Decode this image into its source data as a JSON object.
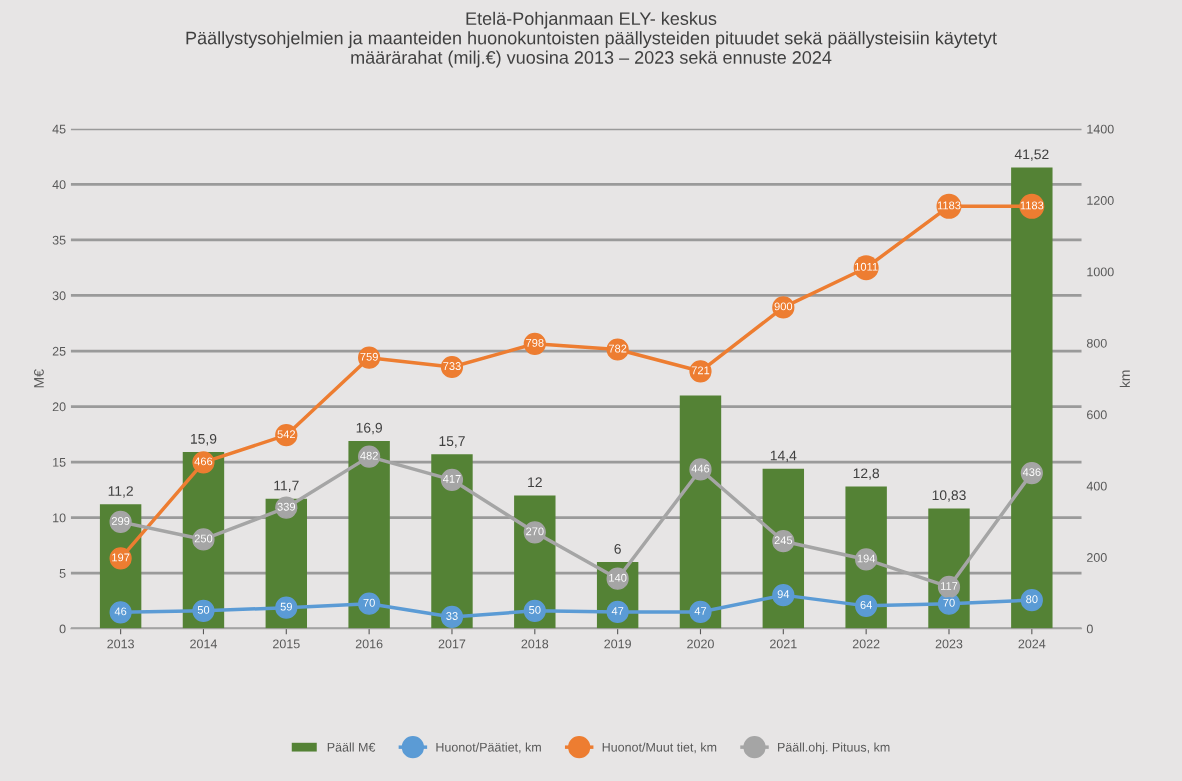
{
  "chart_data": {
    "type": "bar",
    "title": "Etelä-Pohjanmaan ELY- keskus\nPäällystysohjelmien ja maanteiden huonokuntoisten päällysteiden pituudet sekä päällysteisiin käytetyt\nmäärärahat (milj.€) vuosina 2013 – 2023 sekä ennuste 2024",
    "ylabel": "M€",
    "y2label": "km",
    "categories": [
      "2013",
      "2014",
      "2015",
      "2016",
      "2017",
      "2018",
      "2019",
      "2020",
      "2021",
      "2022",
      "2023",
      "2024"
    ],
    "series": [
      {
        "name": "Pääll M€",
        "color": "#548235",
        "values": [
          11.2,
          15.9,
          11.7,
          16.9,
          15.7,
          12,
          6,
          21,
          14.4,
          12.8,
          10.83,
          41.52
        ],
        "value_labels": [
          "11,2",
          "15,9",
          "11,7",
          "16,9",
          "15,7",
          "12",
          "6",
          null,
          "14,4",
          "12,8",
          "10,83",
          "41,52"
        ]
      },
      {
        "name": "Huonot/Päätiet, km",
        "type": "line",
        "axis": "y2",
        "color": "#5b9bd5",
        "values": [
          46,
          50,
          59,
          70,
          33,
          50,
          47,
          47,
          94,
          64,
          70,
          80
        ],
        "value_labels": [
          "46",
          "50",
          "59",
          "70",
          "33",
          "50",
          "47",
          "47",
          "94",
          "64",
          "70",
          "80"
        ]
      },
      {
        "name": "Huonot/Muut tiet, km",
        "type": "line",
        "axis": "y2",
        "color": "#ed7d31",
        "values": [
          197,
          466,
          542,
          759,
          733,
          798,
          782,
          721,
          900,
          1011,
          1183,
          1183
        ],
        "value_labels": [
          "197",
          "466",
          "542",
          "759",
          "733",
          "798",
          "782",
          "721",
          "900",
          "1011",
          "1183",
          "1183"
        ]
      },
      {
        "name": "Pääll.ohj. Pituus, km",
        "type": "line",
        "axis": "y2",
        "color": "#a5a5a5",
        "values": [
          299,
          250,
          339,
          482,
          417,
          270,
          140,
          446,
          245,
          194,
          117,
          436
        ],
        "value_labels": [
          "299",
          "250",
          "339",
          "482",
          "417",
          "270",
          "140",
          "446",
          "245",
          "194",
          "117",
          "436"
        ]
      }
    ],
    "ylim": [
      0,
      45
    ],
    "yticks": [
      0,
      5,
      10,
      15,
      20,
      25,
      30,
      35,
      40,
      45
    ],
    "y2lim": [
      0,
      1400
    ],
    "y2ticks": [
      0,
      200,
      400,
      600,
      800,
      1000,
      1200,
      1400
    ],
    "grid": "y",
    "legend": "bottom",
    "marker": "circle"
  }
}
